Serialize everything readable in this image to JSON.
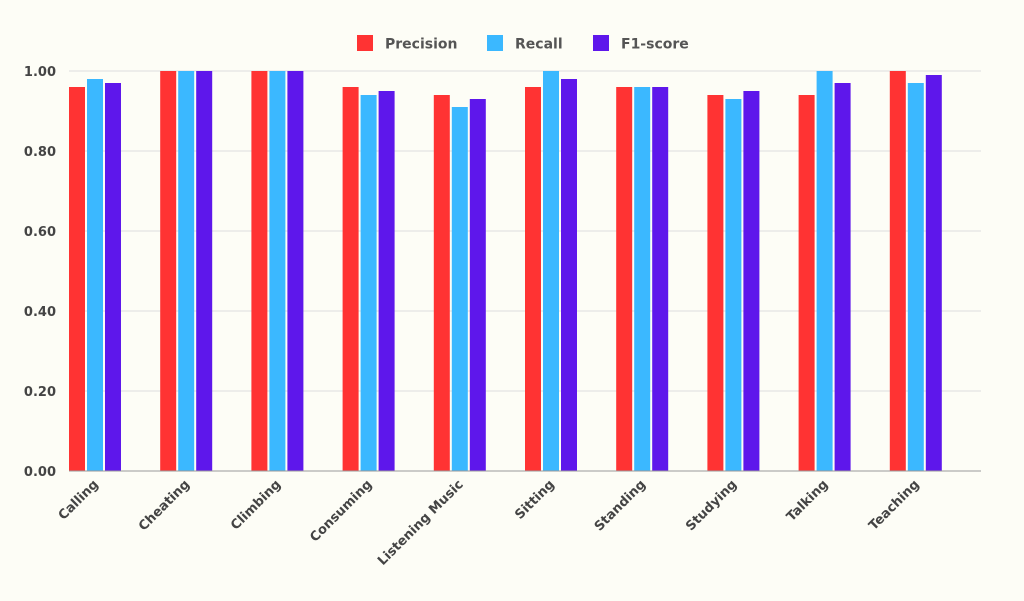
{
  "chart_data": {
    "type": "bar",
    "title": "",
    "xlabel": "",
    "ylabel": "",
    "categories": [
      "Calling",
      "Cheating",
      "Climbing",
      "Consuming",
      "Listening Music",
      "Sitting",
      "Standing",
      "Studying",
      "Talking",
      "Teaching"
    ],
    "series": [
      {
        "name": "Precision",
        "color": "#ff3333",
        "values": [
          0.96,
          1.0,
          1.0,
          0.96,
          0.94,
          0.96,
          0.96,
          0.94,
          0.94,
          1.0
        ]
      },
      {
        "name": "Recall",
        "color": "#3bb8ff",
        "values": [
          0.98,
          1.0,
          1.0,
          0.94,
          0.91,
          1.0,
          0.96,
          0.93,
          1.0,
          0.97
        ]
      },
      {
        "name": "F1-score",
        "color": "#5e17eb",
        "values": [
          0.97,
          1.0,
          1.0,
          0.95,
          0.93,
          0.98,
          0.96,
          0.95,
          0.97,
          0.99
        ]
      }
    ],
    "ylim": [
      0,
      1.0
    ],
    "yticks": [
      "0.00",
      "0.20",
      "0.40",
      "0.60",
      "0.80",
      "1.00"
    ],
    "grid": true,
    "legend_position": "top-center"
  },
  "colors": {
    "background": "#fdfdf6",
    "grid": "#dddddd",
    "axis": "#999999"
  }
}
